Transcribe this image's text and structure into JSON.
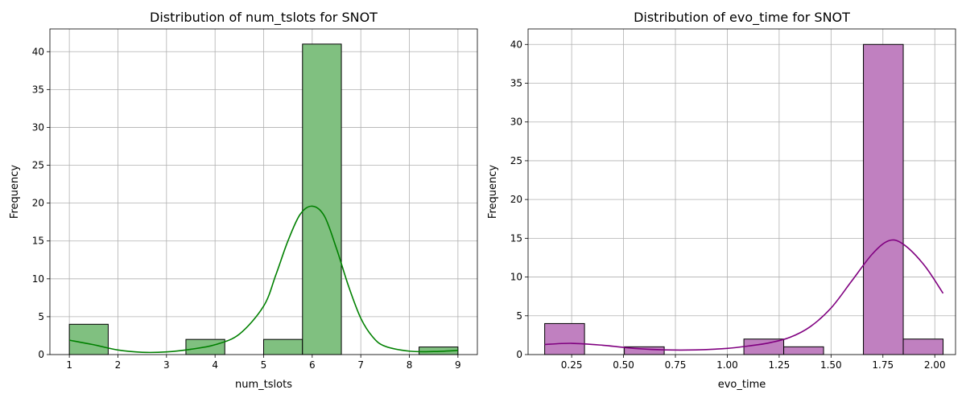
{
  "chart_data": [
    {
      "type": "bar",
      "title": "Distribution of num_tslots for SNOT",
      "xlabel": "num_tslots",
      "ylabel": "Frequency",
      "xlim": [
        0.6,
        9.4
      ],
      "ylim": [
        0,
        43
      ],
      "xticks": [
        1,
        2,
        3,
        4,
        5,
        6,
        7,
        8,
        9
      ],
      "xtick_labels": [
        "1",
        "2",
        "3",
        "4",
        "5",
        "6",
        "7",
        "8",
        "9"
      ],
      "yticks": [
        0,
        5,
        10,
        15,
        20,
        25,
        30,
        35,
        40
      ],
      "ytick_labels": [
        "0",
        "5",
        "10",
        "15",
        "20",
        "25",
        "30",
        "35",
        "40"
      ],
      "grid": true,
      "bar_color": "#80c080",
      "line_color": "#008000",
      "bins": [
        {
          "x0": 1.0,
          "x1": 1.8,
          "count": 4
        },
        {
          "x0": 1.8,
          "x1": 2.6,
          "count": 0
        },
        {
          "x0": 2.6,
          "x1": 3.4,
          "count": 0
        },
        {
          "x0": 3.4,
          "x1": 4.2,
          "count": 2
        },
        {
          "x0": 4.2,
          "x1": 5.0,
          "count": 0
        },
        {
          "x0": 5.0,
          "x1": 5.8,
          "count": 2
        },
        {
          "x0": 5.8,
          "x1": 6.6,
          "count": 41
        },
        {
          "x0": 6.6,
          "x1": 7.4,
          "count": 0
        },
        {
          "x0": 7.4,
          "x1": 8.2,
          "count": 0
        },
        {
          "x0": 8.2,
          "x1": 9.0,
          "count": 1
        }
      ],
      "kde": [
        [
          1.0,
          1.9
        ],
        [
          1.5,
          1.3
        ],
        [
          2.0,
          0.6
        ],
        [
          2.5,
          0.3
        ],
        [
          3.0,
          0.35
        ],
        [
          3.5,
          0.7
        ],
        [
          4.0,
          1.3
        ],
        [
          4.5,
          2.7
        ],
        [
          5.0,
          6.4
        ],
        [
          5.25,
          10.5
        ],
        [
          5.5,
          15.0
        ],
        [
          5.75,
          18.5
        ],
        [
          6.0,
          19.6
        ],
        [
          6.25,
          18.3
        ],
        [
          6.5,
          14.0
        ],
        [
          6.75,
          9.0
        ],
        [
          7.0,
          4.8
        ],
        [
          7.25,
          2.3
        ],
        [
          7.5,
          1.1
        ],
        [
          8.0,
          0.45
        ],
        [
          8.5,
          0.4
        ],
        [
          9.0,
          0.55
        ]
      ]
    },
    {
      "type": "bar",
      "title": "Distribution of evo_time for SNOT",
      "xlabel": "evo_time",
      "ylabel": "Frequency",
      "xlim": [
        0.04,
        2.1
      ],
      "ylim": [
        0,
        42
      ],
      "xticks": [
        0.25,
        0.5,
        0.75,
        1.0,
        1.25,
        1.5,
        1.75,
        2.0
      ],
      "xtick_labels": [
        "0.25",
        "0.50",
        "0.75",
        "1.00",
        "1.25",
        "1.50",
        "1.75",
        "2.00"
      ],
      "yticks": [
        0,
        5,
        10,
        15,
        20,
        25,
        30,
        35,
        40
      ],
      "ytick_labels": [
        "0",
        "5",
        "10",
        "15",
        "20",
        "25",
        "30",
        "35",
        "40"
      ],
      "grid": true,
      "bar_color": "#c080c0",
      "line_color": "#800080",
      "bins": [
        {
          "x0": 0.12,
          "x1": 0.312,
          "count": 4
        },
        {
          "x0": 0.312,
          "x1": 0.504,
          "count": 0
        },
        {
          "x0": 0.504,
          "x1": 0.696,
          "count": 1
        },
        {
          "x0": 0.696,
          "x1": 0.888,
          "count": 0
        },
        {
          "x0": 0.888,
          "x1": 1.08,
          "count": 0
        },
        {
          "x0": 1.08,
          "x1": 1.272,
          "count": 2
        },
        {
          "x0": 1.272,
          "x1": 1.464,
          "count": 1
        },
        {
          "x0": 1.464,
          "x1": 1.656,
          "count": 0
        },
        {
          "x0": 1.656,
          "x1": 1.848,
          "count": 40
        },
        {
          "x0": 1.848,
          "x1": 2.04,
          "count": 2
        }
      ],
      "kde": [
        [
          0.12,
          1.3
        ],
        [
          0.25,
          1.45
        ],
        [
          0.4,
          1.2
        ],
        [
          0.55,
          0.8
        ],
        [
          0.7,
          0.6
        ],
        [
          0.85,
          0.6
        ],
        [
          1.0,
          0.8
        ],
        [
          1.1,
          1.1
        ],
        [
          1.2,
          1.5
        ],
        [
          1.3,
          2.2
        ],
        [
          1.4,
          3.6
        ],
        [
          1.5,
          6.0
        ],
        [
          1.6,
          9.5
        ],
        [
          1.7,
          13.0
        ],
        [
          1.78,
          14.7
        ],
        [
          1.85,
          14.2
        ],
        [
          1.95,
          11.5
        ],
        [
          2.04,
          7.9
        ]
      ]
    }
  ]
}
